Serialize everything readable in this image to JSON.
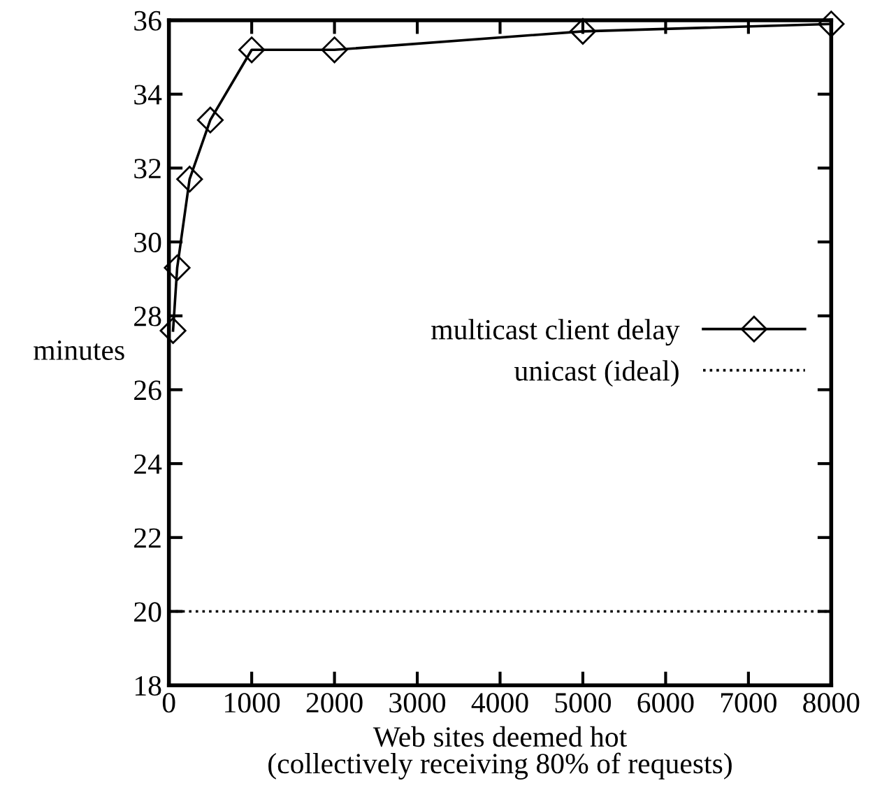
{
  "chart_data": {
    "type": "line",
    "xlabel": "Web sites deemed hot\n(collectively receiving 80% of requests)",
    "ylabel": "minutes",
    "xlim": [
      0,
      8000
    ],
    "ylim": [
      18,
      36
    ],
    "xticks": [
      0,
      1000,
      2000,
      3000,
      4000,
      5000,
      6000,
      7000,
      8000
    ],
    "yticks": [
      18,
      20,
      22,
      24,
      26,
      28,
      30,
      32,
      34,
      36
    ],
    "series": [
      {
        "name": "multicast client delay",
        "color": "#000000",
        "marker": "diamond",
        "line_style": "solid",
        "x": [
          50,
          100,
          250,
          500,
          1000,
          2000,
          5000,
          8000
        ],
        "values": [
          27.6,
          29.3,
          31.7,
          33.3,
          35.2,
          35.2,
          35.7,
          35.9
        ]
      },
      {
        "name": "unicast (ideal)",
        "color": "#000000",
        "marker": "none",
        "line_style": "dotted",
        "x": [
          0,
          8000
        ],
        "values": [
          20,
          20
        ]
      }
    ],
    "legend": "right",
    "grid": false
  }
}
